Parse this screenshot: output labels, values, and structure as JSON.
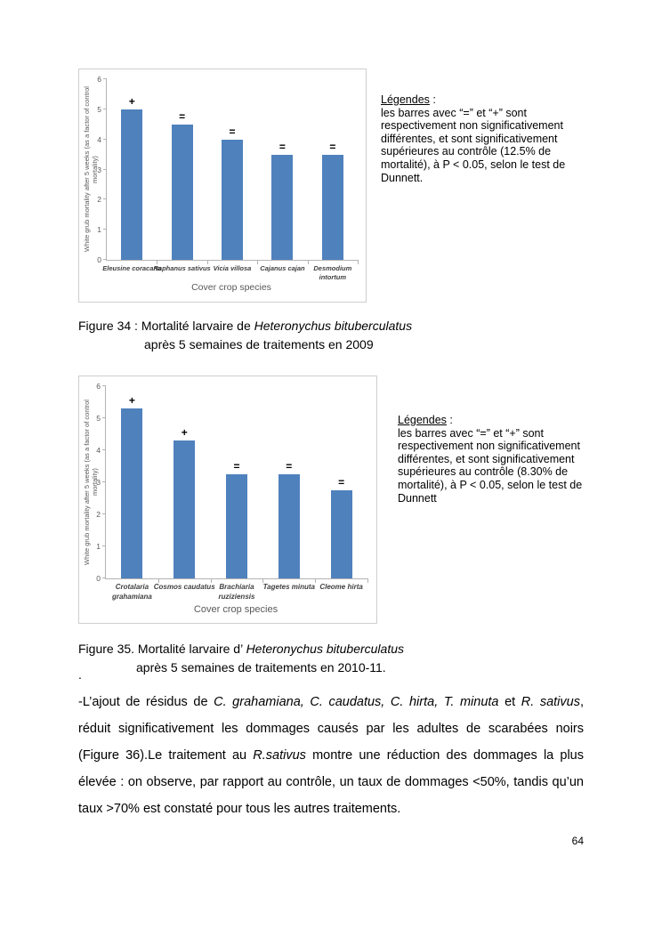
{
  "page": {
    "number": "64"
  },
  "chart_data": [
    {
      "type": "bar",
      "figure": "Figure 34",
      "title": "",
      "categories": [
        "Eleusine coracana",
        "Raphanus sativus",
        "Vicia villosa",
        "Cajanus cajan",
        "Desmodium intortum"
      ],
      "category_label_lines": [
        [
          "Eleusine coracana"
        ],
        [
          "Raphanus sativus"
        ],
        [
          "Vicia villosa"
        ],
        [
          "Cajanus cajan"
        ],
        [
          "Desmodium",
          "intortum"
        ]
      ],
      "values": [
        5.0,
        4.5,
        4.0,
        3.5,
        3.5
      ],
      "bar_labels": [
        "+",
        "=",
        "=",
        "=",
        "="
      ],
      "xlabel": "Cover crop species",
      "ylabel": "White grub mortality after 5 weeks (as a factor of control mortality)",
      "ylim": [
        0,
        6
      ],
      "yticks": [
        0,
        1,
        2,
        3,
        4,
        5,
        6
      ],
      "bar_color": "#4f81bd",
      "grid": false,
      "legend_position": "none"
    },
    {
      "type": "bar",
      "figure": "Figure 35",
      "title": "",
      "categories": [
        "Crotalaria grahamiana",
        "Cosmos caudatus",
        "Brachiaria ruziziensis",
        "Tagetes minuta",
        "Cleome hirta"
      ],
      "category_label_lines": [
        [
          "Crotalaria",
          "grahamiana"
        ],
        [
          "Cosmos caudatus"
        ],
        [
          "Brachiaria",
          "ruziziensis"
        ],
        [
          "Tagetes minuta"
        ],
        [
          "Cleome hirta"
        ]
      ],
      "values": [
        5.3,
        4.3,
        3.25,
        3.25,
        2.75
      ],
      "bar_labels": [
        "+",
        "+",
        "=",
        "=",
        "="
      ],
      "xlabel": "Cover crop species",
      "ylabel": "White grub mortality after 5 weeks (as a factor of control mortality)",
      "ylim": [
        0,
        6
      ],
      "yticks": [
        0,
        1,
        2,
        3,
        4,
        5,
        6
      ],
      "bar_color": "#4f81bd",
      "grid": false,
      "legend_position": "none"
    }
  ],
  "legend34": {
    "title": "Légendes",
    "title_suffix": " :",
    "lines": [
      "les barres avec  “=” et  “+” sont",
      "respectivement  non significativement",
      "différentes, et sont significativement",
      "supérieures au contrôle (12.5% de",
      "mortalité), à P < 0.05, selon le test de",
      "Dunnett."
    ]
  },
  "legend35": {
    "title": "Légendes",
    "title_suffix": " :",
    "lines": [
      "les barres avec  “=” et  “+” sont",
      "respectivement  non significativement",
      "différentes, et sont significativement",
      "supérieures au contrôle (8.30% de",
      "mortalité), à P < 0.05, selon le test de",
      "Dunnett"
    ]
  },
  "caption34": {
    "line1_segments": [
      {
        "text": "Figure 34 : Mortalité larvaire de ",
        "italic": false
      },
      {
        "text": "Heteronychus bituberculatus",
        "italic": true
      }
    ],
    "line2": "après 5 semaines de traitements en 2009"
  },
  "caption35": {
    "line1_segments": [
      {
        "text": "Figure 35. Mortalité larvaire d’ ",
        "italic": false
      },
      {
        "text": "Heteronychus bituberculatus",
        "italic": true
      }
    ],
    "line2": "après 5 semaines de traitements en 2010-11.",
    "stray_dot": "."
  },
  "body_paragraph": {
    "segments": [
      {
        "text": "-L’ajout de résidus de ",
        "italic": false
      },
      {
        "text": "C. grahamiana, C. caudatus, C. hirta, T. minuta",
        "italic": true
      },
      {
        "text": " et ",
        "italic": false
      },
      {
        "text": "R. sativus",
        "italic": true
      },
      {
        "text": ", réduit significativement les  dommages causés par les adultes de scarabées noirs (Figure 36).Le traitement au ",
        "italic": false
      },
      {
        "text": "R.sativus",
        "italic": true
      },
      {
        "text": " montre une réduction des dommages la plus élevée : on observe, par rapport au contrôle, un taux de dommages <50%, tandis qu’un taux  >70% est constaté pour tous les autres traitements.",
        "italic": false
      }
    ]
  }
}
